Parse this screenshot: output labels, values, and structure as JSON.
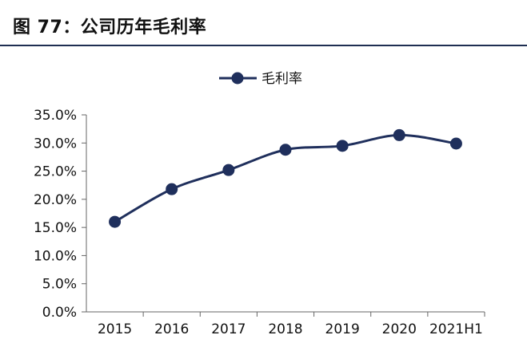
{
  "figure": {
    "title": "图 77：公司历年毛利率"
  },
  "chart_data": {
    "type": "line",
    "categories": [
      "2015",
      "2016",
      "2017",
      "2018",
      "2019",
      "2020",
      "2021H1"
    ],
    "series": [
      {
        "name": "毛利率",
        "values": [
          16.0,
          21.8,
          25.2,
          28.8,
          29.5,
          31.4,
          29.9
        ],
        "color": "#1f2f5c"
      }
    ],
    "y_ticks": [
      "0.0%",
      "5.0%",
      "10.0%",
      "15.0%",
      "20.0%",
      "25.0%",
      "30.0%",
      "35.0%"
    ],
    "ylim": [
      0,
      35
    ],
    "grid": false,
    "legend_position": "top-center"
  }
}
